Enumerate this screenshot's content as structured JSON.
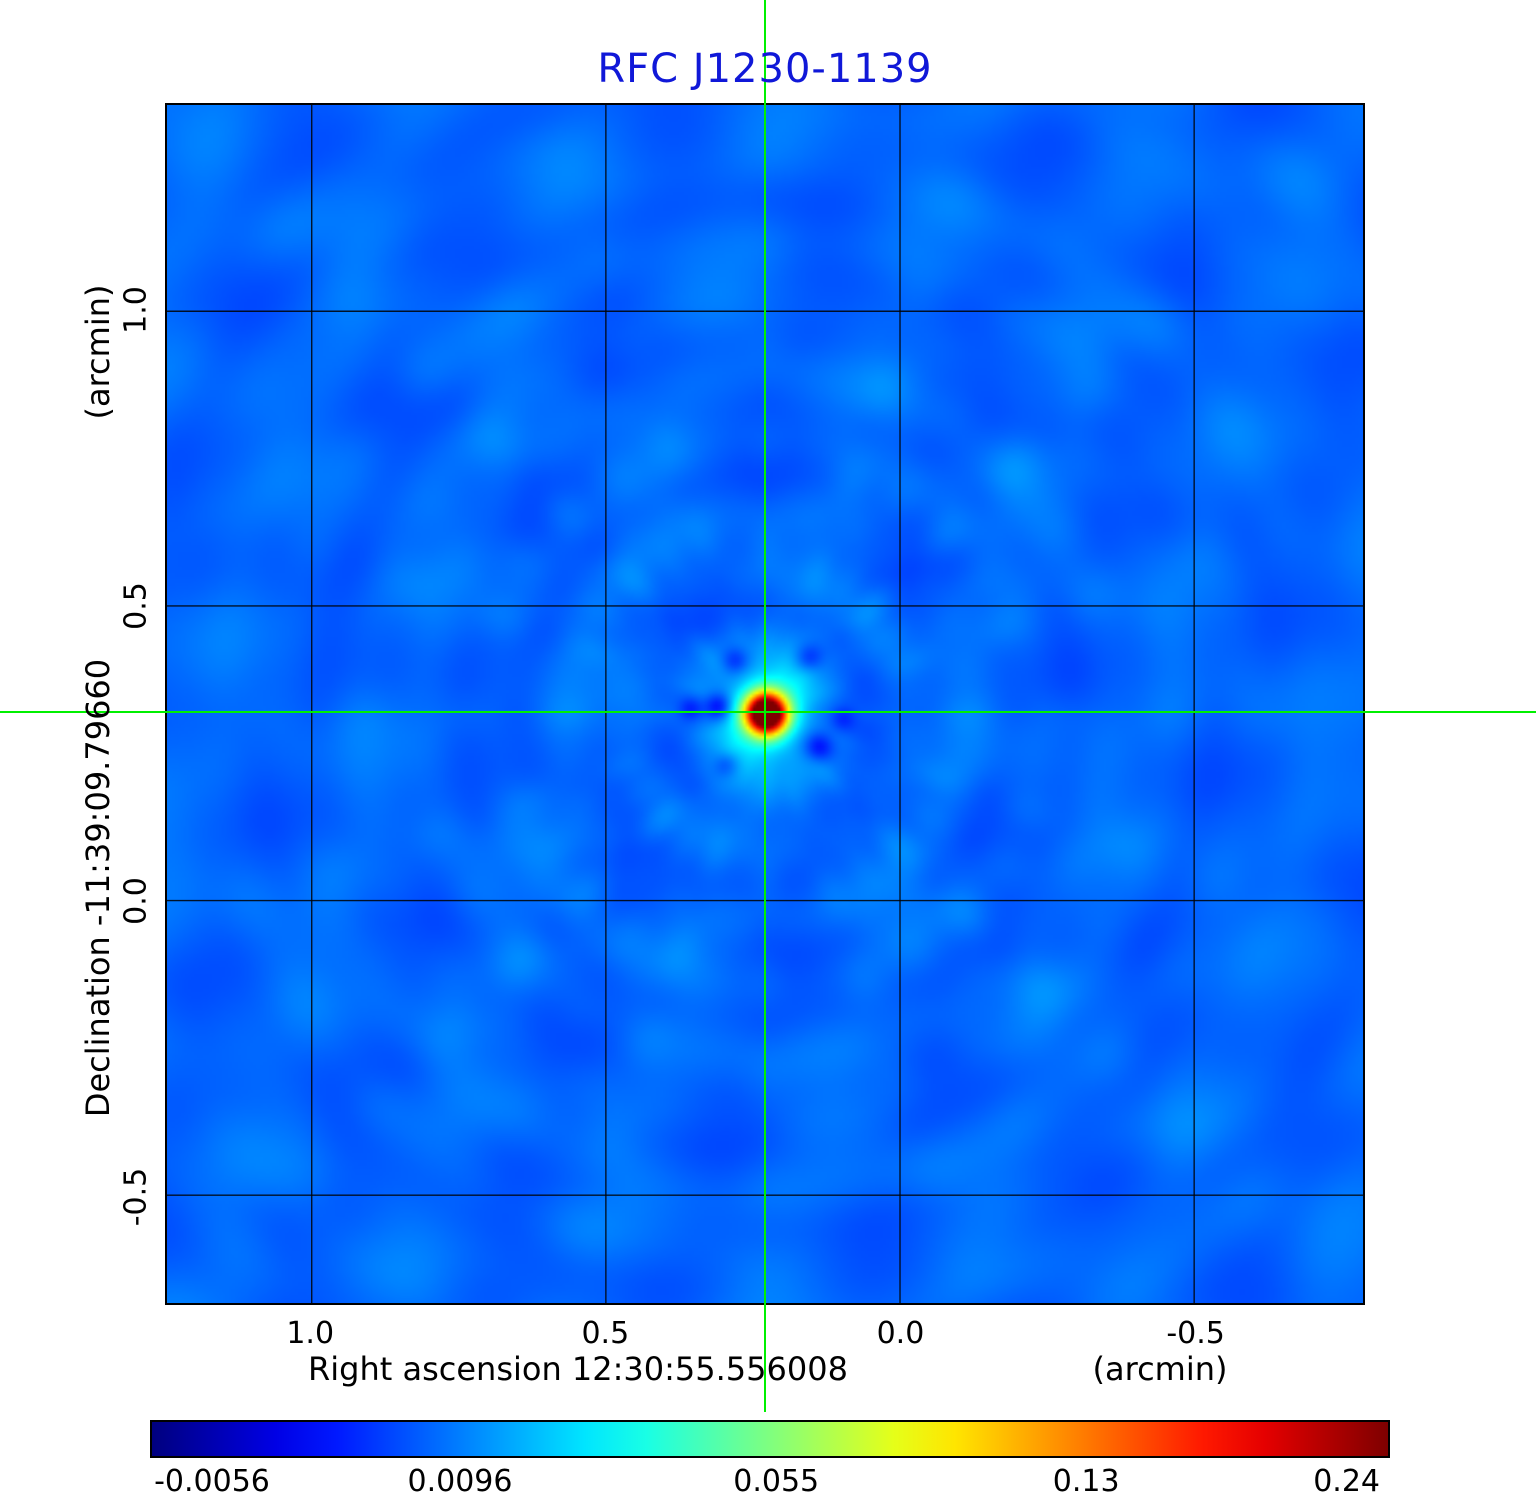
{
  "title": "RFC J1230-1139",
  "colors": {
    "title": "#1018d8",
    "crosshair": "#00f000",
    "grid": "#000000",
    "background": "#ffffff"
  },
  "axes": {
    "y_unit": "(arcmin)",
    "y_label": "Declination  -11:39:09.79660",
    "x_label": "Right ascension  12:30:55.556008",
    "x_unit": "(arcmin)",
    "x_tick_labels": [
      "1.0",
      "0.5",
      "0.0",
      "-0.5"
    ],
    "y_tick_labels": [
      "1.0",
      "0.5",
      "0.0",
      "-0.5"
    ]
  },
  "colorbar": {
    "colormap": "jet",
    "tick_labels": [
      "-0.0056",
      "0.0096",
      "0.055",
      "0.13",
      "0.24"
    ],
    "tick_positions": [
      0.05,
      0.25,
      0.505,
      0.755,
      0.965
    ]
  },
  "chart_data": {
    "type": "heatmap",
    "title": "RFC J1230-1139",
    "xlabel": "Right ascension 12:30:55.556008 (arcmin)",
    "ylabel": "Declination -11:39:09.79660 (arcmin)",
    "colormap": "jet",
    "grid": true,
    "legend": false,
    "x_ticks": [
      1.0,
      0.5,
      0.0,
      -0.5
    ],
    "y_ticks": [
      1.0,
      0.5,
      0.0,
      -0.5
    ],
    "x_range": [
      1.246,
      -0.787
    ],
    "y_range": [
      1.35,
      -0.683
    ],
    "colorbar_ticks": [
      -0.0056,
      0.0096,
      0.055,
      0.13,
      0.24
    ],
    "peak_value": 0.24,
    "background_value": 0.0,
    "source_offset": {
      "x": 0.23,
      "y": 0.32
    },
    "crosshair": true
  }
}
